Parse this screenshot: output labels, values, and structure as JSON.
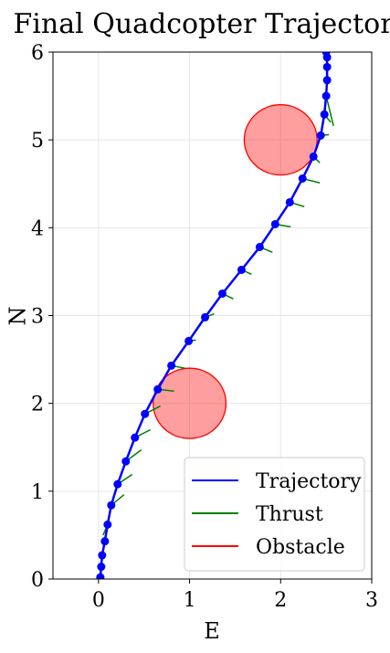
{
  "chart_data": {
    "type": "line",
    "title": "Final Quadcopter Trajectory",
    "xlabel": "E",
    "ylabel": "N",
    "xlim": [
      -0.5,
      3
    ],
    "ylim": [
      0,
      6
    ],
    "xticks": [
      0,
      1,
      2,
      3
    ],
    "yticks": [
      0,
      1,
      2,
      3,
      4,
      5,
      6
    ],
    "grid": true,
    "legend": {
      "placement": "bottom-right",
      "entries": [
        {
          "label": "Trajectory",
          "color": "#0000ff"
        },
        {
          "label": "Thrust",
          "color": "#008000"
        },
        {
          "label": "Obstacle",
          "color": "#ff0000"
        }
      ]
    },
    "series": [
      {
        "name": "Trajectory",
        "color": "#0000ff",
        "points": [
          [
            0.02,
            0.02
          ],
          [
            0.03,
            0.14
          ],
          [
            0.04,
            0.27
          ],
          [
            0.07,
            0.43
          ],
          [
            0.1,
            0.62
          ],
          [
            0.14,
            0.84
          ],
          [
            0.21,
            1.08
          ],
          [
            0.3,
            1.34
          ],
          [
            0.4,
            1.61
          ],
          [
            0.51,
            1.88
          ],
          [
            0.65,
            2.16
          ],
          [
            0.8,
            2.43
          ],
          [
            0.99,
            2.71
          ],
          [
            1.17,
            2.98
          ],
          [
            1.36,
            3.25
          ],
          [
            1.57,
            3.52
          ],
          [
            1.77,
            3.78
          ],
          [
            1.94,
            4.04
          ],
          [
            2.1,
            4.29
          ],
          [
            2.24,
            4.56
          ],
          [
            2.36,
            4.81
          ],
          [
            2.44,
            5.05
          ],
          [
            2.48,
            5.29
          ],
          [
            2.5,
            5.5
          ],
          [
            2.51,
            5.68
          ],
          [
            2.51,
            5.83
          ],
          [
            2.51,
            5.94
          ],
          [
            2.5,
            6.0
          ]
        ]
      },
      {
        "name": "Thrust",
        "color": "#008000",
        "segments": [
          [
            [
              0.1,
              0.62
            ],
            [
              0.05,
              0.5
            ]
          ],
          [
            [
              0.14,
              0.84
            ],
            [
              0.28,
              0.96
            ]
          ],
          [
            [
              0.21,
              1.08
            ],
            [
              0.37,
              1.19
            ]
          ],
          [
            [
              0.3,
              1.34
            ],
            [
              0.47,
              1.47
            ]
          ],
          [
            [
              0.4,
              1.61
            ],
            [
              0.57,
              1.7
            ]
          ],
          [
            [
              0.51,
              1.88
            ],
            [
              0.68,
              1.97
            ]
          ],
          [
            [
              0.65,
              2.16
            ],
            [
              0.83,
              2.14
            ]
          ],
          [
            [
              0.8,
              2.43
            ],
            [
              0.95,
              2.4
            ]
          ],
          [
            [
              0.99,
              2.71
            ],
            [
              1.07,
              2.72
            ]
          ],
          [
            [
              1.17,
              2.98
            ],
            [
              1.27,
              3.02
            ]
          ],
          [
            [
              1.36,
              3.25
            ],
            [
              1.48,
              3.19
            ]
          ],
          [
            [
              1.57,
              3.52
            ],
            [
              1.68,
              3.47
            ]
          ],
          [
            [
              1.77,
              3.78
            ],
            [
              1.91,
              3.72
            ]
          ],
          [
            [
              1.94,
              4.04
            ],
            [
              2.11,
              4.01
            ]
          ],
          [
            [
              2.1,
              4.29
            ],
            [
              2.26,
              4.24
            ]
          ],
          [
            [
              2.24,
              4.56
            ],
            [
              2.43,
              4.51
            ]
          ],
          [
            [
              2.36,
              4.81
            ],
            [
              2.43,
              4.74
            ]
          ],
          [
            [
              2.44,
              5.05
            ],
            [
              2.53,
              5.06
            ]
          ],
          [
            [
              2.48,
              5.29
            ],
            [
              2.55,
              5.2
            ]
          ],
          [
            [
              2.5,
              5.5
            ],
            [
              2.58,
              5.16
            ]
          ]
        ]
      },
      {
        "name": "Obstacle",
        "color": "#ff0000",
        "circles": [
          {
            "center": [
              2.0,
              5.0
            ],
            "radius": 0.4
          },
          {
            "center": [
              1.0,
              2.0
            ],
            "radius": 0.4
          }
        ]
      }
    ]
  }
}
